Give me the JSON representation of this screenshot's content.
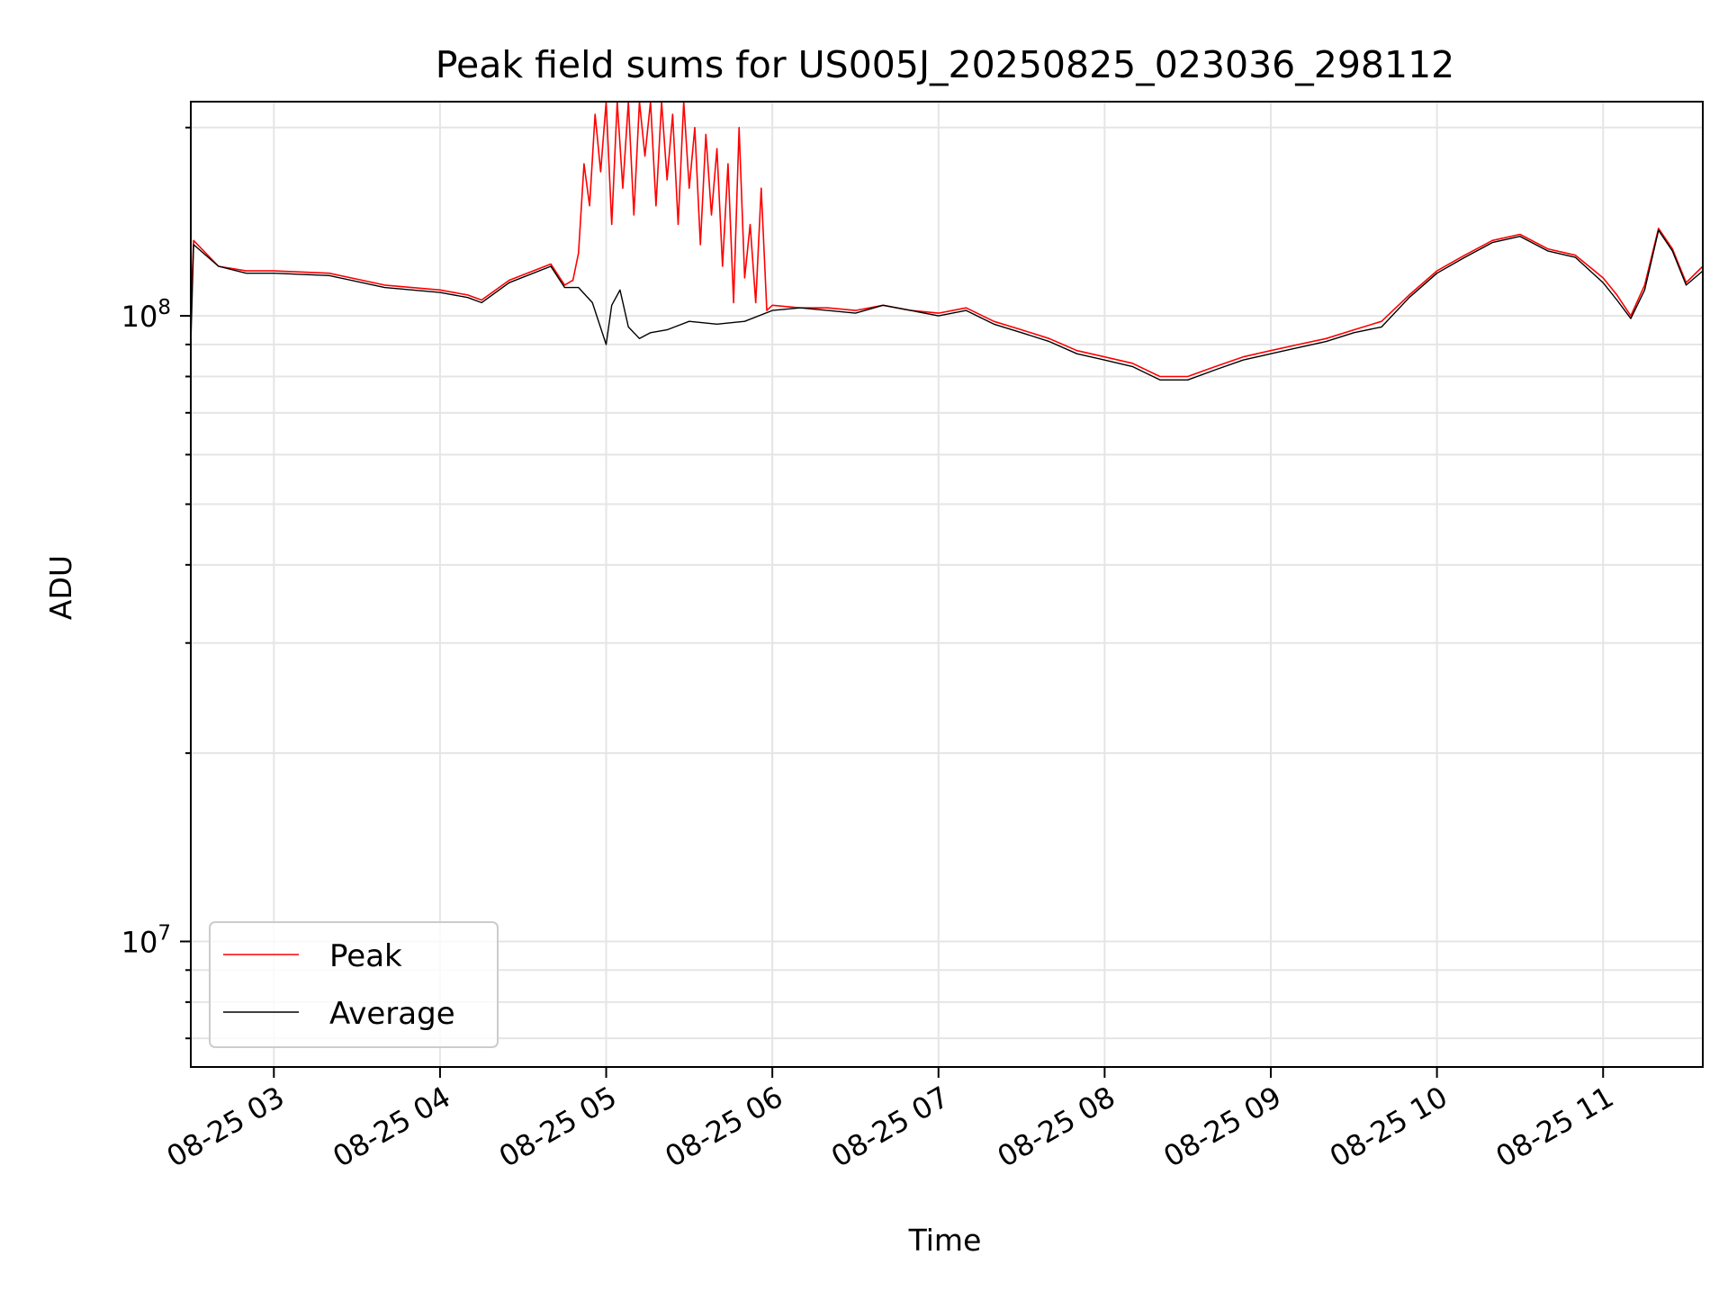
{
  "chart_data": {
    "type": "line",
    "title": "Peak field sums for US005J_20250825_023036_298112",
    "xlabel": "Time",
    "ylabel": "ADU",
    "y_scale": "log",
    "ylim": [
      6300000,
      220000000
    ],
    "xlim": [
      "2025-08-25 02:30",
      "2025-08-25 11:36"
    ],
    "grid": true,
    "legend_position": "lower-left",
    "x_ticks": [
      {
        "t": "2025-08-25 03:00",
        "label": "08-25 03"
      },
      {
        "t": "2025-08-25 04:00",
        "label": "08-25 04"
      },
      {
        "t": "2025-08-25 05:00",
        "label": "08-25 05"
      },
      {
        "t": "2025-08-25 06:00",
        "label": "08-25 06"
      },
      {
        "t": "2025-08-25 07:00",
        "label": "08-25 07"
      },
      {
        "t": "2025-08-25 08:00",
        "label": "08-25 08"
      },
      {
        "t": "2025-08-25 09:00",
        "label": "08-25 09"
      },
      {
        "t": "2025-08-25 10:00",
        "label": "08-25 10"
      },
      {
        "t": "2025-08-25 11:00",
        "label": "08-25 11"
      }
    ],
    "y_ticks": [
      {
        "value": 10000000,
        "base": "10",
        "exp": "7"
      },
      {
        "value": 100000000,
        "base": "10",
        "exp": "8"
      }
    ],
    "series": [
      {
        "name": "Peak",
        "color": "#ff0000",
        "x": [
          "2025-08-25 02:30",
          "2025-08-25 02:31",
          "2025-08-25 02:40",
          "2025-08-25 02:50",
          "2025-08-25 03:00",
          "2025-08-25 03:20",
          "2025-08-25 03:40",
          "2025-08-25 04:00",
          "2025-08-25 04:10",
          "2025-08-25 04:15",
          "2025-08-25 04:25",
          "2025-08-25 04:40",
          "2025-08-25 04:45",
          "2025-08-25 04:48",
          "2025-08-25 04:50",
          "2025-08-25 04:52",
          "2025-08-25 04:54",
          "2025-08-25 04:56",
          "2025-08-25 04:58",
          "2025-08-25 05:00",
          "2025-08-25 05:02",
          "2025-08-25 05:04",
          "2025-08-25 05:06",
          "2025-08-25 05:08",
          "2025-08-25 05:10",
          "2025-08-25 05:12",
          "2025-08-25 05:14",
          "2025-08-25 05:16",
          "2025-08-25 05:18",
          "2025-08-25 05:20",
          "2025-08-25 05:22",
          "2025-08-25 05:24",
          "2025-08-25 05:26",
          "2025-08-25 05:28",
          "2025-08-25 05:30",
          "2025-08-25 05:32",
          "2025-08-25 05:34",
          "2025-08-25 05:36",
          "2025-08-25 05:38",
          "2025-08-25 05:40",
          "2025-08-25 05:42",
          "2025-08-25 05:44",
          "2025-08-25 05:46",
          "2025-08-25 05:48",
          "2025-08-25 05:50",
          "2025-08-25 05:52",
          "2025-08-25 05:54",
          "2025-08-25 05:56",
          "2025-08-25 05:58",
          "2025-08-25 06:00",
          "2025-08-25 06:10",
          "2025-08-25 06:20",
          "2025-08-25 06:30",
          "2025-08-25 06:40",
          "2025-08-25 06:50",
          "2025-08-25 07:00",
          "2025-08-25 07:10",
          "2025-08-25 07:20",
          "2025-08-25 07:30",
          "2025-08-25 07:40",
          "2025-08-25 07:50",
          "2025-08-25 08:00",
          "2025-08-25 08:10",
          "2025-08-25 08:20",
          "2025-08-25 08:30",
          "2025-08-25 08:40",
          "2025-08-25 08:50",
          "2025-08-25 09:00",
          "2025-08-25 09:10",
          "2025-08-25 09:20",
          "2025-08-25 09:30",
          "2025-08-25 09:40",
          "2025-08-25 09:50",
          "2025-08-25 10:00",
          "2025-08-25 10:10",
          "2025-08-25 10:20",
          "2025-08-25 10:30",
          "2025-08-25 10:40",
          "2025-08-25 10:50",
          "2025-08-25 11:00",
          "2025-08-25 11:05",
          "2025-08-25 11:10",
          "2025-08-25 11:15",
          "2025-08-25 11:20",
          "2025-08-25 11:25",
          "2025-08-25 11:30",
          "2025-08-25 11:36"
        ],
        "y": [
          100000000,
          132000000,
          120000000,
          118000000,
          118000000,
          117000000,
          112000000,
          110000000,
          108000000,
          106000000,
          114000000,
          121000000,
          112000000,
          114000000,
          126000000,
          175000000,
          150000000,
          210000000,
          170000000,
          220000000,
          140000000,
          220000000,
          160000000,
          220000000,
          145000000,
          220000000,
          180000000,
          220000000,
          150000000,
          220000000,
          165000000,
          210000000,
          140000000,
          220000000,
          160000000,
          200000000,
          130000000,
          195000000,
          145000000,
          185000000,
          120000000,
          175000000,
          105000000,
          200000000,
          115000000,
          140000000,
          105000000,
          160000000,
          102000000,
          104000000,
          103000000,
          103000000,
          102000000,
          104000000,
          102000000,
          101000000,
          103000000,
          98000000,
          95000000,
          92000000,
          88000000,
          86000000,
          84000000,
          80000000,
          80000000,
          83000000,
          86000000,
          88000000,
          90000000,
          92000000,
          95000000,
          98000000,
          108000000,
          118000000,
          125000000,
          132000000,
          135000000,
          128000000,
          125000000,
          115000000,
          108000000,
          100000000,
          112000000,
          138000000,
          128000000,
          113000000,
          120000000
        ]
      },
      {
        "name": "Average",
        "color": "#000000",
        "x": [
          "2025-08-25 02:30",
          "2025-08-25 02:31",
          "2025-08-25 02:40",
          "2025-08-25 02:50",
          "2025-08-25 03:00",
          "2025-08-25 03:20",
          "2025-08-25 03:40",
          "2025-08-25 04:00",
          "2025-08-25 04:10",
          "2025-08-25 04:15",
          "2025-08-25 04:25",
          "2025-08-25 04:40",
          "2025-08-25 04:45",
          "2025-08-25 04:50",
          "2025-08-25 04:55",
          "2025-08-25 05:00",
          "2025-08-25 05:02",
          "2025-08-25 05:05",
          "2025-08-25 05:08",
          "2025-08-25 05:12",
          "2025-08-25 05:16",
          "2025-08-25 05:22",
          "2025-08-25 05:30",
          "2025-08-25 05:40",
          "2025-08-25 05:50",
          "2025-08-25 06:00",
          "2025-08-25 06:10",
          "2025-08-25 06:20",
          "2025-08-25 06:30",
          "2025-08-25 06:40",
          "2025-08-25 06:50",
          "2025-08-25 07:00",
          "2025-08-25 07:10",
          "2025-08-25 07:20",
          "2025-08-25 07:30",
          "2025-08-25 07:40",
          "2025-08-25 07:50",
          "2025-08-25 08:00",
          "2025-08-25 08:10",
          "2025-08-25 08:20",
          "2025-08-25 08:30",
          "2025-08-25 08:40",
          "2025-08-25 08:50",
          "2025-08-25 09:00",
          "2025-08-25 09:10",
          "2025-08-25 09:20",
          "2025-08-25 09:30",
          "2025-08-25 09:40",
          "2025-08-25 09:50",
          "2025-08-25 10:00",
          "2025-08-25 10:10",
          "2025-08-25 10:20",
          "2025-08-25 10:30",
          "2025-08-25 10:40",
          "2025-08-25 10:50",
          "2025-08-25 11:00",
          "2025-08-25 11:05",
          "2025-08-25 11:10",
          "2025-08-25 11:15",
          "2025-08-25 11:20",
          "2025-08-25 11:25",
          "2025-08-25 11:30",
          "2025-08-25 11:36"
        ],
        "y": [
          90000000,
          130000000,
          120000000,
          117000000,
          117000000,
          116000000,
          111000000,
          109000000,
          107000000,
          105000000,
          113000000,
          120000000,
          111000000,
          111000000,
          105000000,
          90000000,
          104000000,
          110000000,
          96000000,
          92000000,
          94000000,
          95000000,
          98000000,
          97000000,
          98000000,
          102000000,
          103000000,
          102000000,
          101000000,
          104000000,
          102000000,
          100000000,
          102000000,
          97000000,
          94000000,
          91000000,
          87000000,
          85000000,
          83000000,
          79000000,
          79000000,
          82000000,
          85000000,
          87000000,
          89000000,
          91000000,
          94000000,
          96000000,
          107000000,
          117000000,
          124000000,
          131000000,
          134000000,
          127000000,
          124000000,
          113000000,
          106000000,
          99000000,
          110000000,
          137000000,
          127000000,
          112000000,
          118000000
        ]
      }
    ]
  }
}
